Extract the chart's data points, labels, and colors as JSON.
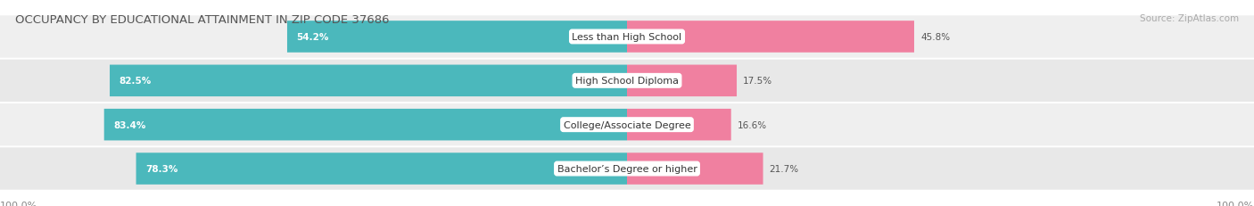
{
  "title": "OCCUPANCY BY EDUCATIONAL ATTAINMENT IN ZIP CODE 37686",
  "source": "Source: ZipAtlas.com",
  "categories": [
    "Less than High School",
    "High School Diploma",
    "College/Associate Degree",
    "Bachelor’s Degree or higher"
  ],
  "owner_pct": [
    54.2,
    82.5,
    83.4,
    78.3
  ],
  "renter_pct": [
    45.8,
    17.5,
    16.6,
    21.7
  ],
  "owner_color": "#4bb8bc",
  "renter_color": "#f080a0",
  "row_bg_color_odd": "#efefef",
  "row_bg_color_even": "#e8e8e8",
  "title_fontsize": 9.5,
  "source_fontsize": 7.5,
  "label_fontsize": 8,
  "value_fontsize": 7.5,
  "legend_fontsize": 8,
  "background_color": "#ffffff",
  "axis_label_left": "100.0%",
  "axis_label_right": "100.0%"
}
